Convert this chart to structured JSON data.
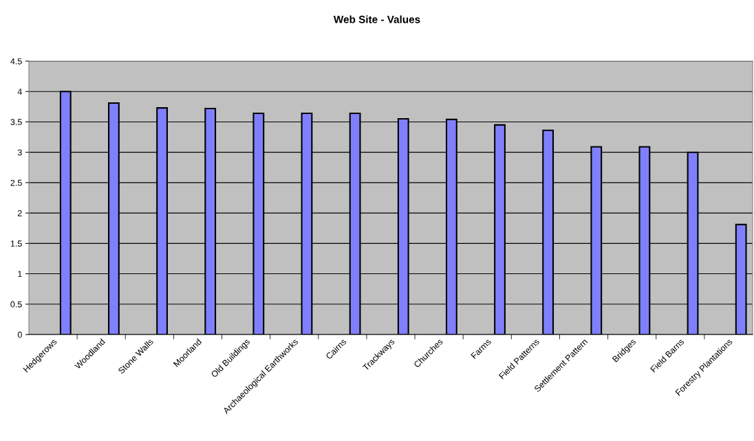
{
  "chart_data": {
    "type": "bar",
    "title": "Web Site - Values",
    "categories": [
      "Hedgerows",
      "Woodland",
      "Stone Walls",
      "Moorland",
      "Old Buildings",
      "Archaeological Earthworks",
      "Cairns",
      "Trackways",
      "Churches",
      "Farms",
      "Field Patterns",
      "Settlement Pattern",
      "Bridges",
      "Field Barns",
      "Forestry Plantations"
    ],
    "values": [
      4.0,
      3.81,
      3.73,
      3.72,
      3.64,
      3.64,
      3.64,
      3.55,
      3.54,
      3.45,
      3.36,
      3.09,
      3.09,
      3.0,
      1.81
    ],
    "color": "#8080ff",
    "ylim": [
      0,
      4.5
    ],
    "yticks": [
      0,
      0.5,
      1,
      1.5,
      2,
      2.5,
      3,
      3.5,
      4,
      4.5
    ],
    "grid": "y"
  }
}
